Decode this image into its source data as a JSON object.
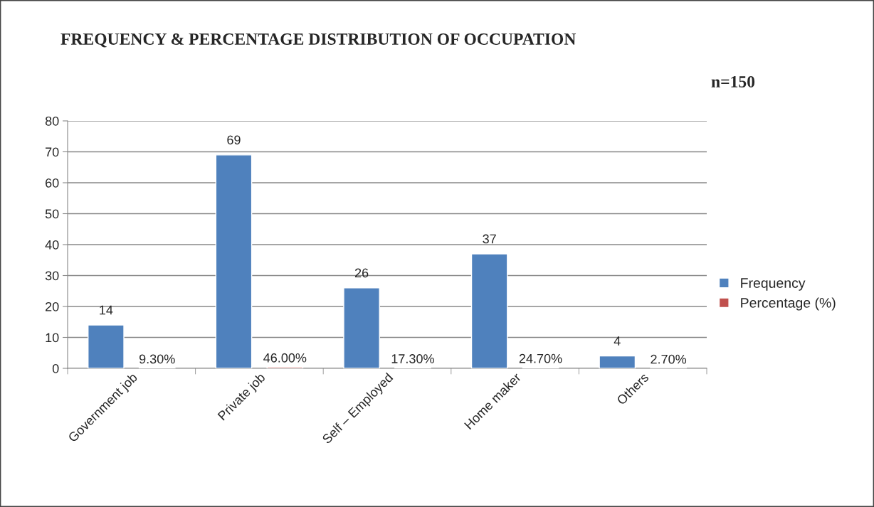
{
  "chart_data": {
    "type": "bar",
    "title": "FREQUENCY & PERCENTAGE DISTRIBUTION OF OCCUPATION",
    "annotations": [
      "n=150"
    ],
    "categories": [
      "Government job",
      "Private job",
      "Self – Employed",
      "Home maker",
      "Others"
    ],
    "series": [
      {
        "name": "Frequency",
        "color": "#4f81bd",
        "values": [
          14,
          69,
          26,
          37,
          4
        ],
        "value_labels": [
          "14",
          "69",
          "26",
          "37",
          "4"
        ]
      },
      {
        "name": "Percentage (%)",
        "color": "#c0504d",
        "values": [
          0.093,
          0.46,
          0.173,
          0.247,
          0.027
        ],
        "value_labels": [
          "9.30%",
          "46.00%",
          "17.30%",
          "24.70%",
          "2.70%"
        ]
      }
    ],
    "ylim": [
      0,
      80
    ],
    "yticks": [
      0,
      10,
      20,
      30,
      40,
      50,
      60,
      70,
      80
    ],
    "grid": "y",
    "legend": "right"
  }
}
